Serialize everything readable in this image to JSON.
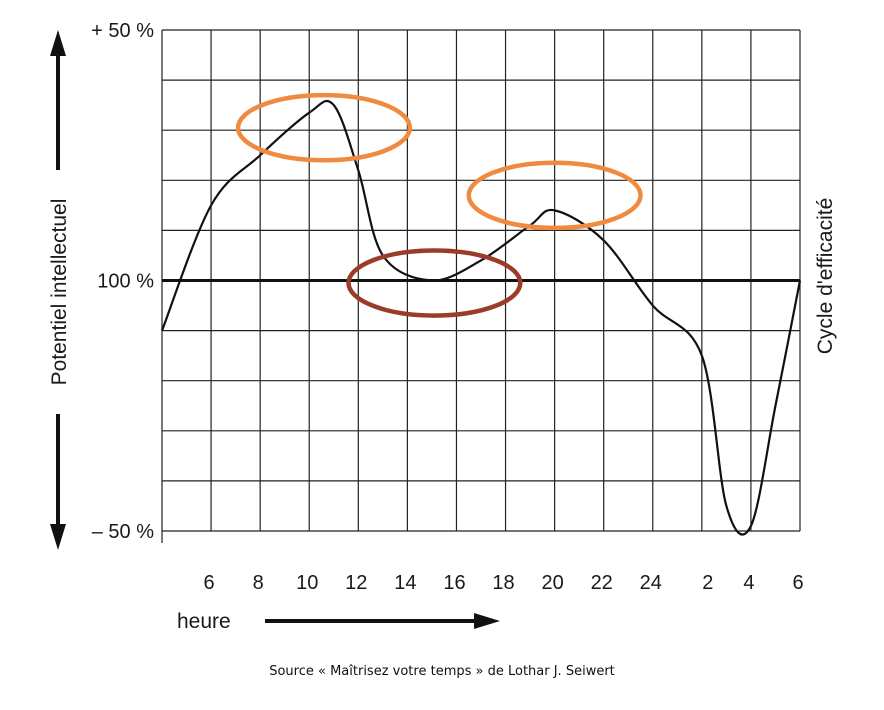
{
  "chart_data": {
    "type": "line",
    "title": "",
    "xlabel": "heure",
    "ylabel_left": "Potentiel intellectuel",
    "ylabel_right": "Cycle d'efficacité",
    "x_ticks": [
      "6",
      "8",
      "10",
      "12",
      "14",
      "16",
      "18",
      "20",
      "22",
      "24",
      "2",
      "4",
      "6"
    ],
    "y_ticks": [
      {
        "value": 50,
        "label": "+ 50 %"
      },
      {
        "value": 0,
        "label": "100 %"
      },
      {
        "value": -50,
        "label": "– 50 %"
      }
    ],
    "ylim": [
      -50,
      50
    ],
    "xlim": [
      4,
      30
    ],
    "x_unit_note": "",
    "grid": true,
    "series": [
      {
        "name": "",
        "points": [
          {
            "x": 4,
            "y": -10
          },
          {
            "x": 6,
            "y": 15
          },
          {
            "x": 8,
            "y": 25
          },
          {
            "x": 10,
            "y": 33.5
          },
          {
            "x": 11,
            "y": 35
          },
          {
            "x": 12,
            "y": 22
          },
          {
            "x": 13,
            "y": 5
          },
          {
            "x": 15,
            "y": 0
          },
          {
            "x": 17,
            "y": 4
          },
          {
            "x": 19,
            "y": 11
          },
          {
            "x": 20,
            "y": 14
          },
          {
            "x": 22,
            "y": 8
          },
          {
            "x": 24,
            "y": -5
          },
          {
            "x": 26,
            "y": -15
          },
          {
            "x": 27,
            "y": -45
          },
          {
            "x": 28,
            "y": -49
          },
          {
            "x": 29,
            "y": -25
          },
          {
            "x": 30,
            "y": 0
          }
        ]
      }
    ],
    "annotations": [
      {
        "type": "ellipse",
        "color": "#f08a40",
        "cx": 10.6,
        "cy": 30.5,
        "rx": 3.5,
        "ry": 6.5
      },
      {
        "type": "ellipse",
        "color": "#f08a40",
        "cx": 20,
        "cy": 17.0,
        "rx": 3.5,
        "ry": 6.5
      },
      {
        "type": "ellipse",
        "color": "#9b3b2a",
        "cx": 15.1,
        "cy": -0.5,
        "rx": 3.5,
        "ry": 6.5
      }
    ]
  },
  "source": "Source « Maîtrisez votre temps » de Lothar J. Seiwert"
}
